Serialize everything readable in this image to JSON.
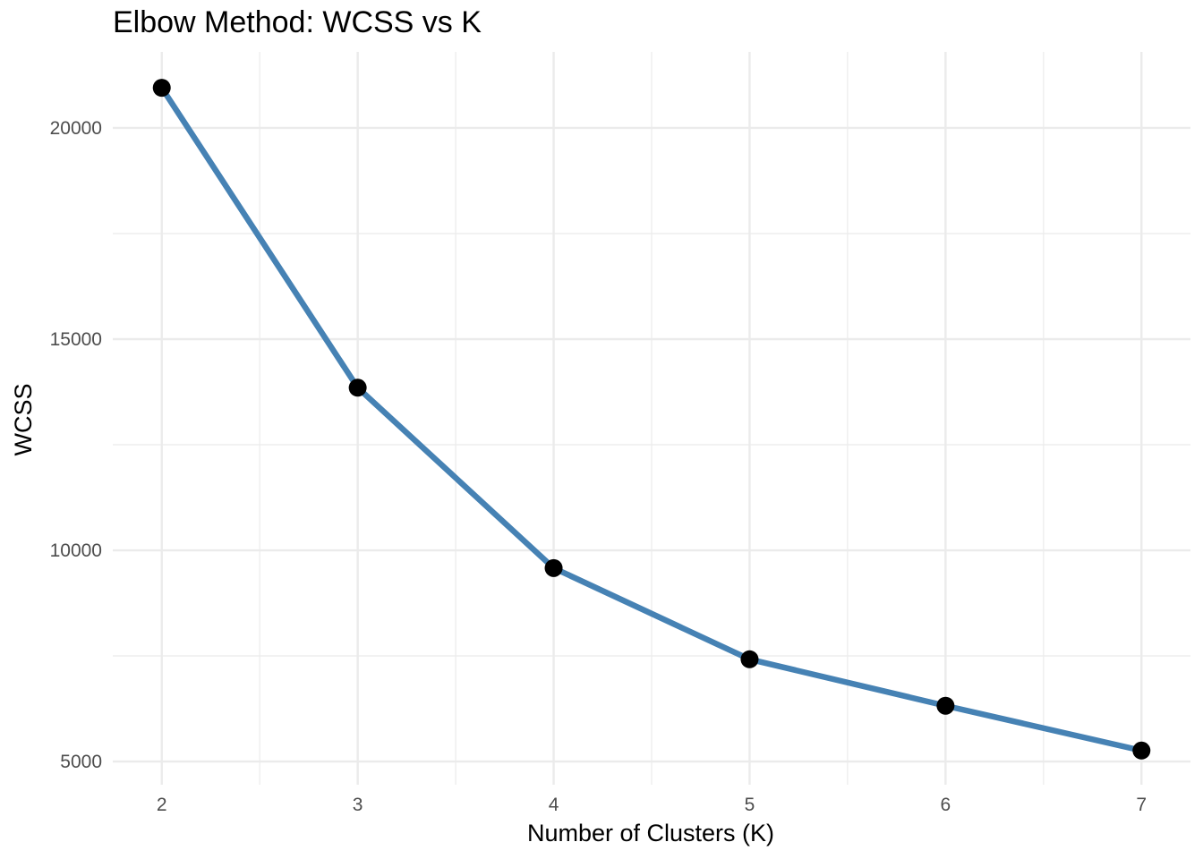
{
  "chart_data": {
    "type": "line",
    "title": "Elbow Method: WCSS vs K",
    "xlabel": "Number of Clusters (K)",
    "ylabel": "WCSS",
    "x": [
      2,
      3,
      4,
      5,
      6,
      7
    ],
    "series": [
      {
        "values": [
          20950,
          13850,
          9580,
          7420,
          6320,
          5260
        ]
      }
    ],
    "xticks": [
      "2",
      "3",
      "4",
      "5",
      "6",
      "7"
    ],
    "yticks": [
      "5000",
      "10000",
      "15000",
      "20000"
    ],
    "xlim": [
      1.75,
      7.25
    ],
    "ylim": [
      4450,
      21800
    ],
    "grid": true,
    "legend": "none",
    "line_color": "#4682b4",
    "point_color": "#000000",
    "grid_color": "#ebebeb"
  }
}
